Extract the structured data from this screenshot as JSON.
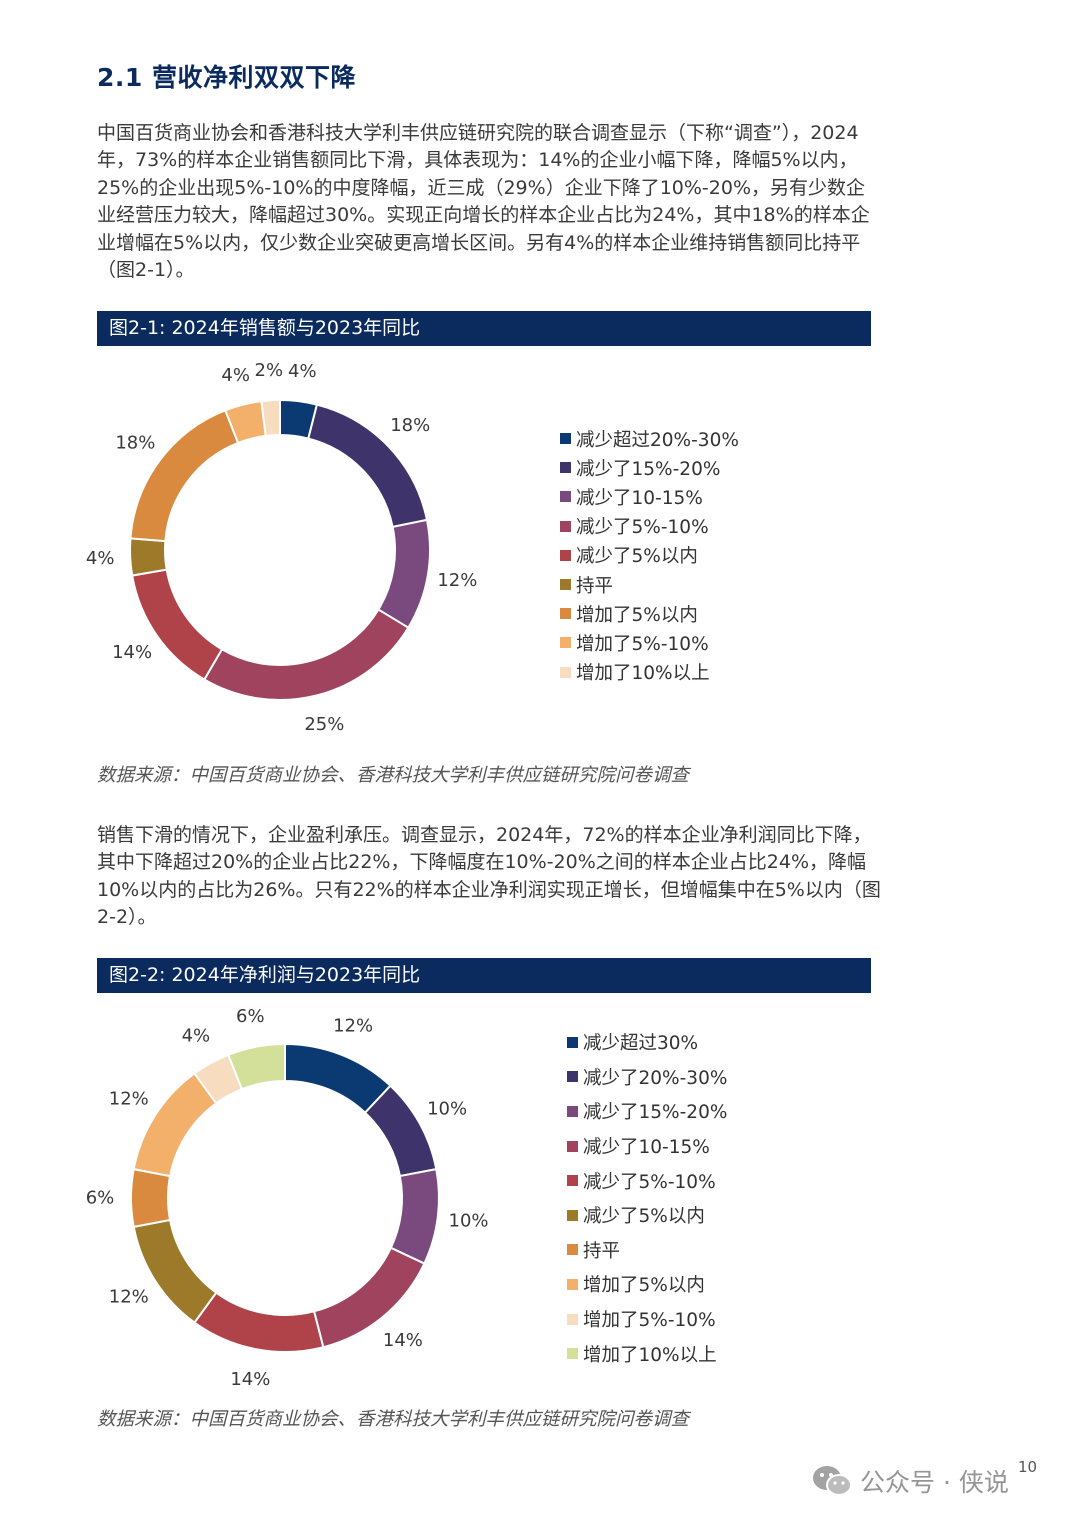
{
  "heading": "2.1 营收净利双双下降",
  "paragraphs": {
    "p1": "中国百货商业协会和香港科技大学利丰供应链研究院的联合调查显示（下称“调查”），2024年，73%的样本企业销售额同比下滑，具体表现为：14%的企业小幅下降，降幅5%以内，25%的企业出现5%-10%的中度降幅，近三成（29%）企业下降了10%-20%，另有少数企业经营压力较大，降幅超过30%。实现正向增长的样本企业占比为24%，其中18%的样本企业增幅在5%以内，仅少数企业突破更高增长区间。另有4%的样本企业维持销售额同比持平（图2-1）。",
    "p2": "销售下滑的情况下，企业盈利承压。调查显示，2024年，72%的样本企业净利润同比下降，其中下降超过20%的企业占比22%，下降幅度在10%-20%之间的样本企业占比24%，降幅10%以内的占比为26%。只有22%的样本企业净利润实现正增长，但增幅集中在5%以内（图2-2）。"
  },
  "page_number": "10",
  "watermark": "公众号 · 侠说",
  "chart_data": [
    {
      "type": "pie",
      "donut": true,
      "title": "图2-1: 2024年销售额与2023年同比",
      "source": "数据来源：中国百货商业协会、香港科技大学利丰供应链研究院问卷调查",
      "legend_position": "right",
      "categories": [
        "减少超过20%-30%",
        "减少了15%-20%",
        "减少了10-15%",
        "减少了5%-10%",
        "减少了5%以内",
        "持平",
        "增加了5%以内",
        "增加了5%-10%",
        "增加了10%以上"
      ],
      "values": [
        4,
        18,
        12,
        25,
        14,
        4,
        18,
        4,
        2
      ],
      "data_labels": [
        "4%",
        "18%",
        "12%",
        "25%",
        "14%",
        "4%",
        "18%",
        "4%",
        "2%"
      ],
      "colors": [
        "#0b3a73",
        "#3e336b",
        "#7a4a7e",
        "#a0435f",
        "#b0434a",
        "#9c7a2a",
        "#d98a3e",
        "#f2b06a",
        "#f7dcc0"
      ]
    },
    {
      "type": "pie",
      "donut": true,
      "title": "图2-2: 2024年净利润与2023年同比",
      "source": "数据来源：中国百货商业协会、香港科技大学利丰供应链研究院问卷调查",
      "legend_position": "right",
      "categories": [
        "减少超过30%",
        "减少了20%-30%",
        "减少了15%-20%",
        "减少了10-15%",
        "减少了5%-10%",
        "减少了5%以内",
        "持平",
        "增加了5%以内",
        "增加了5%-10%",
        "增加了10%以上"
      ],
      "values": [
        12,
        10,
        10,
        14,
        14,
        12,
        6,
        12,
        4,
        6
      ],
      "data_labels": [
        "12%",
        "10%",
        "10%",
        "14%",
        "14%",
        "12%",
        "6%",
        "12%",
        "4%",
        "6%"
      ],
      "colors": [
        "#0b3a73",
        "#3e336b",
        "#7a4a7e",
        "#a0435f",
        "#b0434a",
        "#9c7a2a",
        "#d98a3e",
        "#f2b06a",
        "#f7dcc0",
        "#d2e09a"
      ]
    }
  ]
}
